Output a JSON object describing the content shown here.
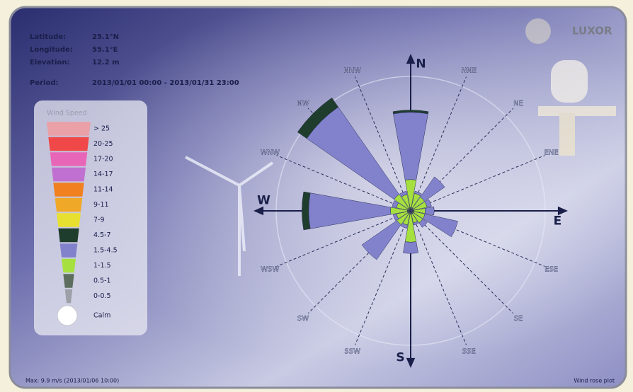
{
  "header": {
    "logo": "LUXOR"
  },
  "site": {
    "rows": [
      [
        "Latitude:",
        "25.1°N"
      ],
      [
        "Longitude:",
        "55.1°E"
      ],
      [
        "Elevation:",
        "12.2 m"
      ]
    ],
    "period_label": "Period:",
    "period": "2013/01/01 00:00 - 2013/01/31 23:00"
  },
  "chart_data": {
    "type": "windrose",
    "legend_title": "Wind Speed",
    "calm_label": "Calm",
    "categories": [
      "N",
      "NNE",
      "NE",
      "ENE",
      "E",
      "ESE",
      "SE",
      "SSE",
      "S",
      "SSW",
      "SW",
      "WSW",
      "W",
      "WNW",
      "NW",
      "NNW"
    ],
    "rlim": [
      0,
      12
    ],
    "series": [
      {
        "name": "> 25",
        "color": "#e9a0a6",
        "values": [
          0,
          0,
          0,
          0,
          0,
          0,
          0,
          0,
          0,
          0,
          0,
          0,
          0,
          0,
          0,
          0
        ]
      },
      {
        "name": "20-25",
        "color": "#f04848",
        "values": [
          0,
          0,
          0,
          0,
          0,
          0,
          0,
          0,
          0,
          0,
          0,
          0,
          0,
          0,
          0,
          0
        ]
      },
      {
        "name": "17-20",
        "color": "#e866b8",
        "values": [
          0,
          0,
          0,
          0,
          0,
          0,
          0,
          0,
          0,
          0,
          0,
          0,
          0,
          0,
          0,
          0
        ]
      },
      {
        "name": "14-17",
        "color": "#c070d0",
        "values": [
          0,
          0,
          0,
          0,
          0,
          0,
          0,
          0,
          0,
          0,
          0,
          0,
          0,
          0,
          0,
          0
        ]
      },
      {
        "name": "11-14",
        "color": "#f08020",
        "values": [
          0,
          0,
          0,
          0,
          0,
          0,
          0,
          0,
          0,
          0,
          0,
          0,
          0,
          0,
          0,
          0
        ]
      },
      {
        "name": "9-11",
        "color": "#f0a828",
        "values": [
          0,
          0,
          0,
          0,
          0,
          0,
          0,
          0,
          0,
          0,
          0,
          0,
          0,
          0,
          0,
          0
        ]
      },
      {
        "name": "7-9",
        "color": "#e8e030",
        "values": [
          0,
          0,
          0,
          0,
          0,
          0,
          0,
          0,
          0,
          0,
          0,
          0,
          0,
          0,
          0,
          0
        ]
      },
      {
        "name": "4.5-7",
        "color": "#1f3d2c",
        "values": [
          0.2,
          0,
          0,
          0,
          0,
          0,
          0,
          0,
          0,
          0,
          0,
          0,
          0.6,
          0,
          1.0,
          0
        ]
      },
      {
        "name": "1.5-4.5",
        "color": "#8282cc",
        "values": [
          6,
          0.2,
          2.2,
          0.4,
          0.8,
          3,
          0.5,
          0.2,
          1,
          0.3,
          3.8,
          0.3,
          7.3,
          0.4,
          9.5,
          0.3
        ]
      },
      {
        "name": "1-1.5",
        "color": "#a6e040",
        "values": [
          2.5,
          1.3,
          1.2,
          1.2,
          1,
          1,
          1,
          0.8,
          2.5,
          1,
          1.2,
          1,
          1.5,
          1,
          1.5,
          1.2
        ]
      },
      {
        "name": "0.5-1",
        "color": "#5e6e5e",
        "values": [
          0.3,
          0.3,
          0.3,
          0.3,
          0.3,
          0.3,
          0.3,
          0.3,
          0.3,
          0.3,
          0.3,
          0.3,
          0.3,
          0.3,
          0.3,
          0.3
        ]
      },
      {
        "name": "0-0.5",
        "color": "#9ea0a8",
        "values": [
          0,
          0,
          0,
          0,
          0,
          0,
          0,
          0,
          0,
          0,
          0,
          0,
          0,
          0,
          0,
          0
        ]
      }
    ]
  },
  "footer": {
    "left": "Max: 9.9 m/s (2013/01/06 10:00)",
    "right": "Wind rose plot"
  }
}
